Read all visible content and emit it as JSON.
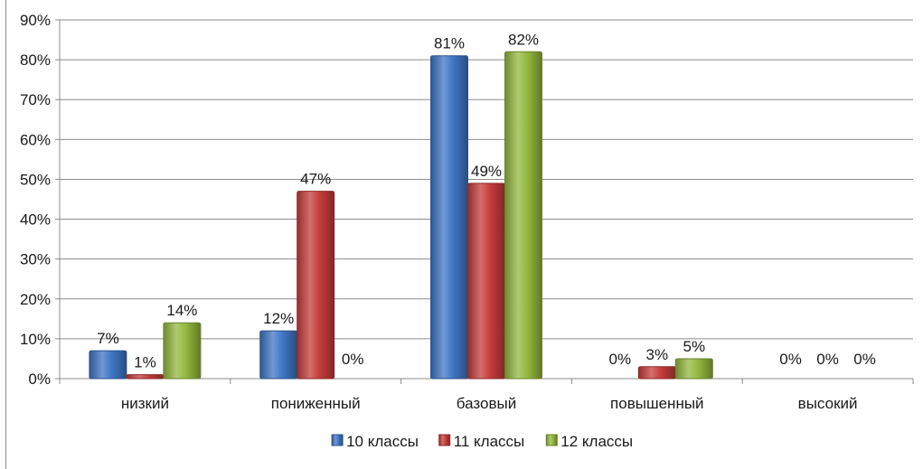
{
  "chart_data": {
    "type": "bar",
    "categories": [
      "низкий",
      "пониженный",
      "базовый",
      "повышенный",
      "высокий"
    ],
    "series": [
      {
        "name": "10 классы",
        "values": [
          7,
          12,
          81,
          0,
          0
        ],
        "labels": [
          "7%",
          "12%",
          "81%",
          "0%",
          "0%"
        ],
        "color": "#3f76c6"
      },
      {
        "name": "11 классы",
        "values": [
          1,
          47,
          49,
          3,
          0
        ],
        "labels": [
          "1%",
          "47%",
          "49%",
          "3%",
          "0%"
        ],
        "color": "#c63d3b"
      },
      {
        "name": "12 классы",
        "values": [
          14,
          0,
          82,
          5,
          0
        ],
        "labels": [
          "14%",
          "0%",
          "82%",
          "5%",
          "0%"
        ],
        "color": "#95b93f"
      }
    ],
    "yticks": [
      "0%",
      "10%",
      "20%",
      "30%",
      "40%",
      "50%",
      "60%",
      "70%",
      "80%",
      "90%"
    ],
    "ylim": [
      0,
      90
    ],
    "grid": true,
    "legend_position": "bottom"
  }
}
